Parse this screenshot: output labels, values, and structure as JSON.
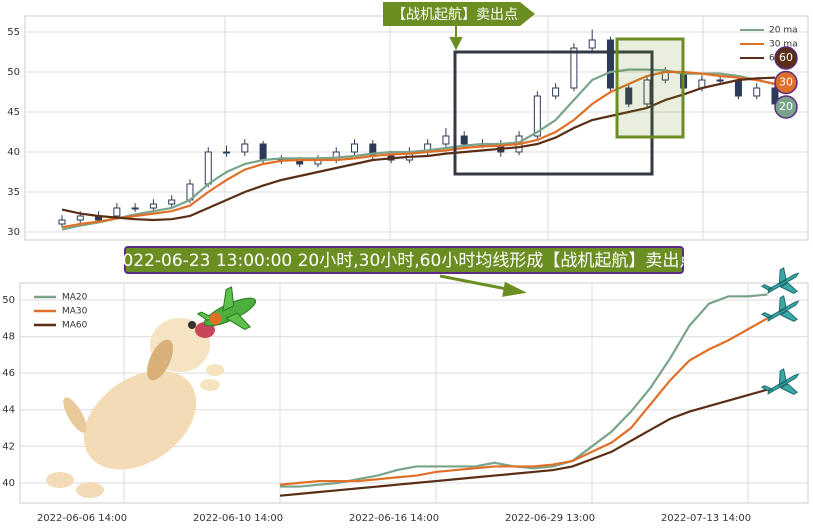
{
  "chart_data": [
    {
      "type": "candlestick",
      "annotation": "【战机起航】卖出点",
      "ylim": [
        29,
        57
      ],
      "yticks": [
        30,
        35,
        40,
        45,
        50,
        55
      ],
      "grid": true,
      "legend": "upper right",
      "candle_color": "#2c3a5a",
      "open": [
        31,
        31.5,
        32,
        32,
        33,
        33,
        33.5,
        34,
        36,
        40,
        40,
        41,
        39,
        39,
        38.5,
        39,
        40,
        41,
        39.5,
        39,
        40,
        41,
        42,
        41,
        41,
        40,
        42,
        47,
        48,
        53,
        54,
        48,
        46,
        49,
        50,
        48,
        49,
        49,
        47,
        48
      ],
      "high": [
        32.1,
        32.6,
        32.6,
        33.6,
        33.6,
        34.1,
        34.6,
        36.6,
        40.6,
        40.8,
        41.6,
        41.4,
        39.6,
        39.4,
        39.6,
        40.6,
        41.6,
        41.5,
        40.1,
        40.6,
        41.6,
        43,
        42.6,
        41.6,
        41.5,
        42.6,
        47.6,
        48.6,
        53.6,
        55.3,
        54.4,
        48.5,
        49.6,
        50.6,
        50.5,
        49.6,
        49.6,
        49.5,
        48.6,
        48.5
      ],
      "low": [
        30.6,
        31.1,
        31.1,
        31.6,
        32.5,
        32.6,
        33.1,
        33.6,
        35.6,
        39.4,
        39.5,
        38.6,
        38.5,
        38.1,
        38.1,
        38.6,
        39.6,
        39.1,
        38.6,
        38.6,
        39.6,
        40.6,
        40.6,
        40.5,
        39.4,
        39.6,
        41.6,
        46.6,
        47.6,
        52.6,
        47.6,
        45.6,
        45.6,
        48.6,
        47.6,
        47.6,
        48.5,
        46.6,
        46.6,
        45.6
      ],
      "close": [
        31.5,
        32,
        31.5,
        33,
        33,
        33.5,
        34,
        36,
        40,
        40,
        41,
        39,
        39,
        38.5,
        39,
        40,
        41,
        39.5,
        39,
        40,
        41,
        42,
        41,
        41,
        40,
        42,
        47,
        48,
        53,
        54,
        48,
        46,
        49,
        50,
        48,
        49,
        49,
        47,
        48,
        46
      ],
      "series": [
        {
          "name": "20 ma",
          "color": "#7aa48a",
          "values": [
            30.3,
            30.8,
            31.2,
            31.7,
            32.2,
            32.6,
            33,
            34,
            36,
            37.5,
            38.5,
            39,
            39.2,
            39.2,
            39.2,
            39.3,
            39.5,
            39.8,
            40,
            40,
            40.2,
            40.5,
            40.8,
            41,
            41,
            41.2,
            42.5,
            44,
            46.5,
            49,
            50,
            50.3,
            50.3,
            50.2,
            49.8,
            49.8,
            49.8,
            49.5,
            49,
            48.5
          ]
        },
        {
          "name": "30 ma",
          "color": "#e07028",
          "values": [
            30.6,
            31,
            31.3,
            31.7,
            32,
            32.3,
            32.6,
            33.3,
            35,
            36.5,
            37.8,
            38.5,
            38.9,
            39,
            39,
            39,
            39.2,
            39.5,
            39.7,
            39.8,
            40,
            40.2,
            40.5,
            40.7,
            40.8,
            41,
            41.5,
            42.5,
            44,
            46,
            47.5,
            48.5,
            49.5,
            50,
            50,
            49.8,
            49.5,
            49.3,
            49,
            48.5
          ]
        },
        {
          "name": "60 ma",
          "color": "#5a2e14",
          "values": [
            32.8,
            32.3,
            32,
            31.8,
            31.6,
            31.5,
            31.6,
            32,
            33,
            34,
            35,
            35.8,
            36.5,
            37,
            37.5,
            38,
            38.5,
            39,
            39.2,
            39.4,
            39.5,
            39.8,
            40,
            40.2,
            40.4,
            40.6,
            41,
            41.8,
            43,
            44,
            44.5,
            45,
            45.5,
            46.5,
            47.2,
            48,
            48.5,
            49,
            49.2,
            49.3
          ]
        }
      ],
      "marker_labels": [
        60,
        30,
        20
      ]
    },
    {
      "type": "line",
      "title": "2022-06-23 13:00:00 20小时,30小时,60小时均线形成【战机起航】卖出点",
      "ylim": [
        38.9,
        50.93
      ],
      "yticks": [
        40,
        42,
        44,
        46,
        48,
        50
      ],
      "grid": true,
      "legend": "upper left",
      "categories": [
        "2022-06-06 14:00",
        null,
        null,
        null,
        null,
        null,
        null,
        null,
        "2022-06-10 14:00",
        null,
        null,
        null,
        null,
        null,
        null,
        null,
        "2022-06-16 14:00",
        null,
        null,
        null,
        null,
        null,
        null,
        null,
        "2022-06-29 13:00",
        null,
        null,
        null,
        null,
        null,
        null,
        null,
        "2022-07-13 14:00",
        null
      ],
      "series": [
        {
          "name": "MA20",
          "color": "#7aa48a",
          "values": [
            null,
            null,
            null,
            null,
            null,
            null,
            null,
            null,
            39.8,
            39.8,
            39.9,
            40.0,
            40.2,
            40.4,
            40.7,
            40.9,
            40.9,
            40.9,
            40.9,
            41.1,
            40.9,
            40.8,
            40.9,
            41.2,
            42.0,
            42.8,
            43.9,
            45.2,
            46.8,
            48.6,
            49.8,
            50.2,
            50.2,
            50.3
          ]
        },
        {
          "name": "MA30",
          "color": "#e07028",
          "values": [
            null,
            null,
            null,
            null,
            null,
            null,
            null,
            null,
            39.9,
            40.0,
            40.1,
            40.1,
            40.1,
            40.2,
            40.3,
            40.4,
            40.6,
            40.7,
            40.8,
            40.9,
            40.9,
            40.9,
            41.0,
            41.2,
            41.7,
            42.2,
            43.0,
            44.3,
            45.6,
            46.7,
            47.3,
            47.8,
            48.4,
            49.0
          ]
        },
        {
          "name": "MA60",
          "color": "#5a2e14",
          "values": [
            null,
            null,
            null,
            null,
            null,
            null,
            null,
            null,
            39.3,
            39.4,
            39.5,
            39.6,
            39.7,
            39.8,
            39.9,
            40.0,
            40.1,
            40.2,
            40.3,
            40.4,
            40.5,
            40.6,
            40.7,
            40.9,
            41.3,
            41.7,
            42.3,
            42.9,
            43.5,
            43.9,
            44.2,
            44.5,
            44.8,
            45.1
          ]
        }
      ]
    }
  ]
}
